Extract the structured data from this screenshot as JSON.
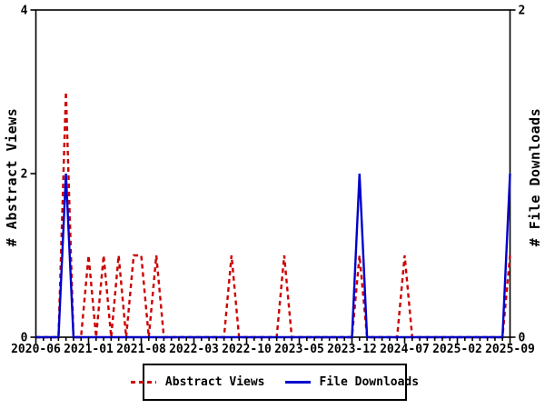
{
  "chart_data": {
    "type": "line",
    "title": "",
    "background": "#ffffff",
    "months": [
      "2020-06",
      "2020-07",
      "2020-08",
      "2020-09",
      "2020-10",
      "2020-11",
      "2020-12",
      "2021-01",
      "2021-02",
      "2021-03",
      "2021-04",
      "2021-05",
      "2021-06",
      "2021-07",
      "2021-08",
      "2021-09",
      "2021-10",
      "2021-11",
      "2021-12",
      "2022-01",
      "2022-02",
      "2022-03",
      "2022-04",
      "2022-05",
      "2022-06",
      "2022-07",
      "2022-08",
      "2022-09",
      "2022-10",
      "2022-11",
      "2022-12",
      "2023-01",
      "2023-02",
      "2023-03",
      "2023-04",
      "2023-05",
      "2023-06",
      "2023-07",
      "2023-08",
      "2023-09",
      "2023-10",
      "2023-11",
      "2023-12",
      "2024-01",
      "2024-02",
      "2024-03",
      "2024-04",
      "2024-05",
      "2024-06",
      "2024-07",
      "2024-08",
      "2024-09",
      "2024-10",
      "2024-11",
      "2024-12",
      "2025-01",
      "2025-02",
      "2025-03",
      "2025-04",
      "2025-05",
      "2025-06",
      "2025-07",
      "2025-08",
      "2025-09"
    ],
    "x_tick_labels": [
      "2020-06",
      "2021-01",
      "2021-08",
      "2022-03",
      "2022-10",
      "2023-05",
      "2023-12",
      "2024-07",
      "2025-02",
      "2025-09"
    ],
    "series": [
      {
        "name": "Abstract Views",
        "axis": "left",
        "color": "#cc0000",
        "style": "dashed",
        "values": [
          0,
          0,
          0,
          0,
          3,
          0,
          0,
          1,
          0,
          1,
          0,
          1,
          0,
          1,
          1,
          0,
          1,
          0,
          0,
          0,
          0,
          0,
          0,
          0,
          0,
          0,
          1,
          0,
          0,
          0,
          0,
          0,
          0,
          1,
          0,
          0,
          0,
          0,
          0,
          0,
          0,
          0,
          0,
          1,
          0,
          0,
          0,
          0,
          0,
          1,
          0,
          0,
          0,
          0,
          0,
          0,
          0,
          0,
          0,
          0,
          0,
          0,
          0,
          1
        ]
      },
      {
        "name": "File Downloads",
        "axis": "right",
        "color": "#0000cc",
        "style": "solid",
        "values": [
          0,
          0,
          0,
          0,
          1,
          0,
          0,
          0,
          0,
          0,
          0,
          0,
          0,
          0,
          0,
          0,
          0,
          0,
          0,
          0,
          0,
          0,
          0,
          0,
          0,
          0,
          0,
          0,
          0,
          0,
          0,
          0,
          0,
          0,
          0,
          0,
          0,
          0,
          0,
          0,
          0,
          0,
          0,
          1,
          0,
          0,
          0,
          0,
          0,
          0,
          0,
          0,
          0,
          0,
          0,
          0,
          0,
          0,
          0,
          0,
          0,
          0,
          0,
          1
        ]
      }
    ],
    "left_axis": {
      "label": "# Abstract Views",
      "range": [
        0,
        4
      ],
      "ticks": [
        0,
        2,
        4
      ]
    },
    "right_axis": {
      "label": "# File Downloads",
      "range": [
        0,
        2
      ],
      "ticks": [
        0,
        2
      ]
    },
    "grid": false,
    "legend_position": "bottom-center",
    "axis_color": "#000000"
  }
}
